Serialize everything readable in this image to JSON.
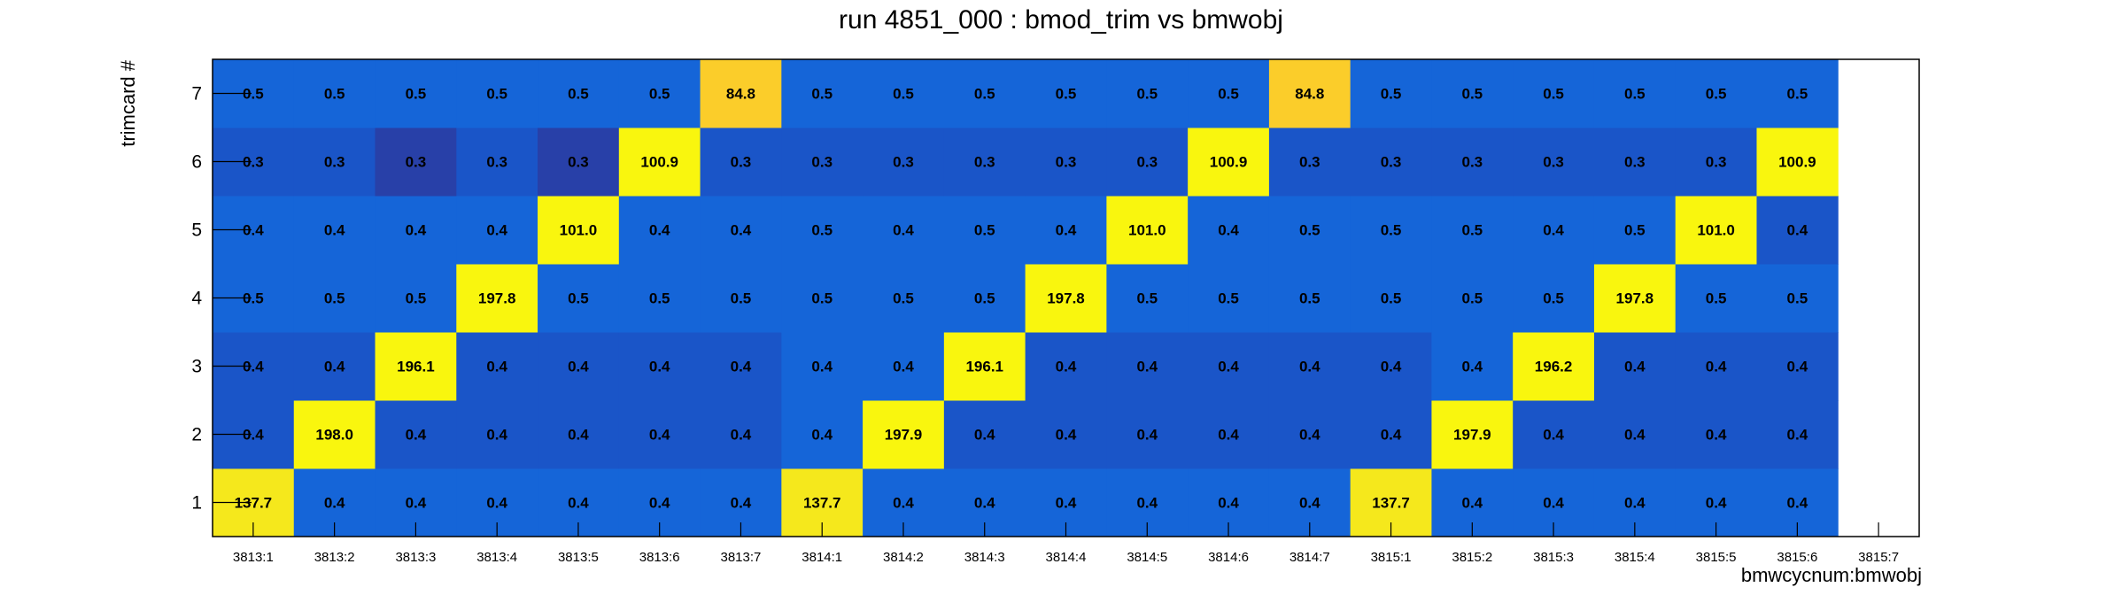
{
  "chart_data": {
    "type": "heatmap",
    "title": "run 4851_000 : bmod_trim vs bmwobj",
    "xlabel": "bmwcycnum:bmwobj",
    "ylabel": "trimcard #",
    "x_categories": [
      "3813:1",
      "3813:2",
      "3813:3",
      "3813:4",
      "3813:5",
      "3813:6",
      "3813:7",
      "3814:1",
      "3814:2",
      "3814:3",
      "3814:4",
      "3814:5",
      "3814:6",
      "3814:7",
      "3815:1",
      "3815:2",
      "3815:3",
      "3815:4",
      "3815:5",
      "3815:6",
      "3815:7"
    ],
    "y_categories": [
      "1",
      "2",
      "3",
      "4",
      "5",
      "6",
      "7"
    ],
    "value_labels": {
      "1": [
        "137.7",
        "0.4",
        "0.4",
        "0.4",
        "0.4",
        "0.4",
        "0.4",
        "137.7",
        "0.4",
        "0.4",
        "0.4",
        "0.4",
        "0.4",
        "0.4",
        "137.7",
        "0.4",
        "0.4",
        "0.4",
        "0.4",
        "0.4",
        null
      ],
      "2": [
        "0.4",
        "198.0",
        "0.4",
        "0.4",
        "0.4",
        "0.4",
        "0.4",
        "0.4",
        "197.9",
        "0.4",
        "0.4",
        "0.4",
        "0.4",
        "0.4",
        "0.4",
        "197.9",
        "0.4",
        "0.4",
        "0.4",
        "0.4",
        null
      ],
      "3": [
        "0.4",
        "0.4",
        "196.1",
        "0.4",
        "0.4",
        "0.4",
        "0.4",
        "0.4",
        "0.4",
        "196.1",
        "0.4",
        "0.4",
        "0.4",
        "0.4",
        "0.4",
        "0.4",
        "196.2",
        "0.4",
        "0.4",
        "0.4",
        null
      ],
      "4": [
        "0.5",
        "0.5",
        "0.5",
        "197.8",
        "0.5",
        "0.5",
        "0.5",
        "0.5",
        "0.5",
        "0.5",
        "197.8",
        "0.5",
        "0.5",
        "0.5",
        "0.5",
        "0.5",
        "0.5",
        "197.8",
        "0.5",
        "0.5",
        null
      ],
      "5": [
        "0.4",
        "0.4",
        "0.4",
        "0.4",
        "101.0",
        "0.4",
        "0.4",
        "0.5",
        "0.4",
        "0.5",
        "0.4",
        "101.0",
        "0.4",
        "0.5",
        "0.5",
        "0.5",
        "0.4",
        "0.5",
        "101.0",
        "0.4",
        null
      ],
      "6": [
        "0.3",
        "0.3",
        "0.3",
        "0.3",
        "0.3",
        "100.9",
        "0.3",
        "0.3",
        "0.3",
        "0.3",
        "0.3",
        "0.3",
        "100.9",
        "0.3",
        "0.3",
        "0.3",
        "0.3",
        "0.3",
        "0.3",
        "100.9",
        null
      ],
      "7": [
        "0.5",
        "0.5",
        "0.5",
        "0.5",
        "0.5",
        "0.5",
        "84.8",
        "0.5",
        "0.5",
        "0.5",
        "0.5",
        "0.5",
        "0.5",
        "84.8",
        "0.5",
        "0.5",
        "0.5",
        "0.5",
        "0.5",
        "0.5",
        null
      ]
    },
    "cell_colors": {
      "1": [
        "#f5e81c",
        "#1565d8",
        "#1565d8",
        "#1565d8",
        "#1565d8",
        "#1565d8",
        "#1565d8",
        "#f5e81c",
        "#1565d8",
        "#1565d8",
        "#1565d8",
        "#1565d8",
        "#1565d8",
        "#1565d8",
        "#f5e81c",
        "#1565d8",
        "#1565d8",
        "#1565d8",
        "#1565d8",
        "#1565d8",
        null
      ],
      "2": [
        "#1a55c8",
        "#f9f60e",
        "#1a55c8",
        "#1a55c8",
        "#1a55c8",
        "#1a55c8",
        "#1a55c8",
        "#1565d8",
        "#f9f60e",
        "#1a55c8",
        "#1a55c8",
        "#1a55c8",
        "#1a55c8",
        "#1a55c8",
        "#1a55c8",
        "#f9f60e",
        "#1a55c8",
        "#1a55c8",
        "#1a55c8",
        "#1a55c8",
        null
      ],
      "3": [
        "#1a55c8",
        "#1a55c8",
        "#f9f60e",
        "#1a55c8",
        "#1a55c8",
        "#1a55c8",
        "#1a55c8",
        "#1565d8",
        "#1565d8",
        "#f9f60e",
        "#1a55c8",
        "#1a55c8",
        "#1a55c8",
        "#1a55c8",
        "#1a55c8",
        "#1565d8",
        "#f9f60e",
        "#1a55c8",
        "#1a55c8",
        "#1a55c8",
        null
      ],
      "4": [
        "#1565d8",
        "#1565d8",
        "#1565d8",
        "#f9f60e",
        "#1565d8",
        "#1565d8",
        "#1565d8",
        "#1565d8",
        "#1565d8",
        "#1565d8",
        "#f9f60e",
        "#1565d8",
        "#1565d8",
        "#1565d8",
        "#1565d8",
        "#1565d8",
        "#1565d8",
        "#f9f60e",
        "#1565d8",
        "#1565d8",
        null
      ],
      "5": [
        "#1565d8",
        "#1565d8",
        "#1565d8",
        "#1565d8",
        "#f9f60e",
        "#1565d8",
        "#1565d8",
        "#1565d8",
        "#1565d8",
        "#1565d8",
        "#1565d8",
        "#f9f60e",
        "#1565d8",
        "#1565d8",
        "#1565d8",
        "#1565d8",
        "#1565d8",
        "#1565d8",
        "#f9f60e",
        "#1a55c8",
        null
      ],
      "6": [
        "#1a55c8",
        "#1a55c8",
        "#2840a8",
        "#1a55c8",
        "#2840a8",
        "#f9f60e",
        "#1a55c8",
        "#1a55c8",
        "#1a55c8",
        "#1a55c8",
        "#1a55c8",
        "#1a55c8",
        "#f9f60e",
        "#1a55c8",
        "#1a55c8",
        "#1a55c8",
        "#1a55c8",
        "#1a55c8",
        "#1a55c8",
        "#f9f60e",
        null
      ],
      "7": [
        "#1565d8",
        "#1565d8",
        "#1565d8",
        "#1565d8",
        "#1565d8",
        "#1565d8",
        "#fbcd2a",
        "#1565d8",
        "#1565d8",
        "#1565d8",
        "#1565d8",
        "#1565d8",
        "#1565d8",
        "#fbcd2a",
        "#1565d8",
        "#1565d8",
        "#1565d8",
        "#1565d8",
        "#1565d8",
        "#1565d8",
        null
      ]
    },
    "legend": "none",
    "grid": false
  }
}
